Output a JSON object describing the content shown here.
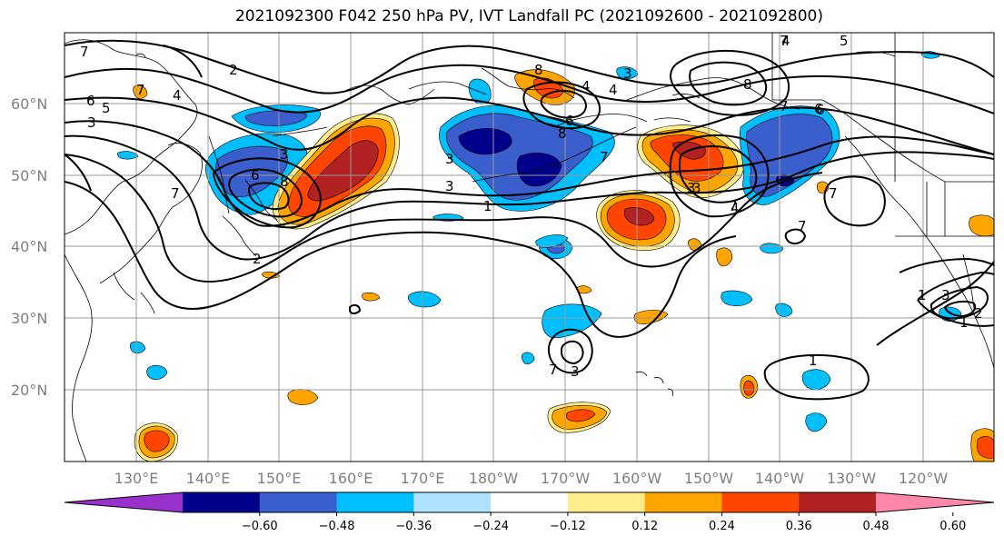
{
  "title": "2021092300 F042 250 hPa PV, IVT Landfall PC (2021092600 - 2021092800)",
  "lat_labels": [
    "60°N",
    "50°N",
    "40°N",
    "30°N",
    "20°N"
  ],
  "lon_labels": [
    "130°E",
    "140°E",
    "150°E",
    "160°E",
    "170°E",
    "180°W",
    "170°W",
    "160°W",
    "150°W",
    "140°W",
    "130°W",
    "120°W"
  ],
  "colorbar": {
    "ticks": [
      "−0.60",
      "−0.48",
      "−0.36",
      "−0.24",
      "−0.12",
      "0.12",
      "0.24",
      "0.36",
      "0.48",
      "0.60"
    ],
    "colors": [
      "#9932cc",
      "#00008b",
      "#3a5fcd",
      "#00bfff",
      "#b0e2ff",
      "#ffffff",
      "#ffec8b",
      "#ffa500",
      "#ff4500",
      "#b22222",
      "#ff88aa"
    ]
  },
  "contour_labels": [
    "7",
    "2",
    "6",
    "5",
    "3",
    "4",
    "7",
    "3",
    "6",
    "8",
    "2",
    "7",
    "3",
    "1",
    "3",
    "8",
    "4",
    "6",
    "8",
    "7",
    "3",
    "4",
    "8",
    "7",
    "6",
    "7",
    "4",
    "3",
    "7",
    "1",
    "7",
    "3",
    "7",
    "3",
    "1",
    "1",
    "2",
    "7",
    "6",
    "5",
    "4",
    "3"
  ],
  "fill_colors": {
    "light_blue": "#00bfff",
    "mid_blue": "#3a5fcd",
    "dark_blue": "#00008b",
    "yellow": "#ffec8b",
    "orange": "#ffa500",
    "red_orange": "#ff4500",
    "dark_red": "#b22222"
  }
}
